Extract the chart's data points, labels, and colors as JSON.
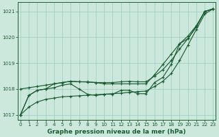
{
  "xlabel": "Graphe pression niveau de la mer (hPa)",
  "ylim": [
    1016.8,
    1021.35
  ],
  "xlim": [
    -0.3,
    23.3
  ],
  "yticks": [
    1017,
    1018,
    1019,
    1020,
    1021
  ],
  "xticks": [
    0,
    1,
    2,
    3,
    4,
    5,
    6,
    7,
    8,
    9,
    10,
    11,
    12,
    13,
    14,
    15,
    16,
    17,
    18,
    19,
    20,
    21,
    22,
    23
  ],
  "bg_color": "#cce8dd",
  "grid_color": "#99ccbb",
  "line_color": "#1a5c30",
  "line1": [
    1017.0,
    1017.3,
    1017.5,
    1017.6,
    1017.65,
    1017.7,
    1017.72,
    1017.74,
    1017.76,
    1017.78,
    1017.8,
    1017.82,
    1017.84,
    1017.87,
    1017.9,
    1017.92,
    1018.1,
    1018.3,
    1018.6,
    1019.1,
    1019.7,
    1020.3,
    1020.9,
    1021.1
  ],
  "line2": [
    1017.0,
    1017.75,
    1017.95,
    1018.0,
    1018.05,
    1018.15,
    1018.2,
    1018.0,
    1017.8,
    1017.75,
    1017.8,
    1017.8,
    1017.95,
    1017.95,
    1017.82,
    1017.82,
    1018.25,
    1018.45,
    1018.95,
    1019.75,
    1019.95,
    1020.42,
    1021.0,
    1021.1
  ],
  "line3": [
    1017.0,
    1017.75,
    1017.95,
    1018.0,
    1018.2,
    1018.25,
    1018.3,
    1018.28,
    1018.28,
    1018.25,
    1018.2,
    1018.2,
    1018.2,
    1018.2,
    1018.2,
    1018.2,
    1018.55,
    1018.95,
    1019.35,
    1019.75,
    1020.05,
    1020.45,
    1021.0,
    1021.1
  ],
  "line4": [
    1018.0,
    1018.05,
    1018.1,
    1018.15,
    1018.2,
    1018.25,
    1018.3,
    1018.28,
    1018.27,
    1018.25,
    1018.25,
    1018.25,
    1018.28,
    1018.3,
    1018.28,
    1018.28,
    1018.5,
    1018.75,
    1019.1,
    1019.55,
    1019.95,
    1020.4,
    1021.0,
    1021.1
  ],
  "fontsize_label": 6.5,
  "fontsize_tick": 5.2,
  "linewidth": 0.85,
  "markersize": 3.5
}
